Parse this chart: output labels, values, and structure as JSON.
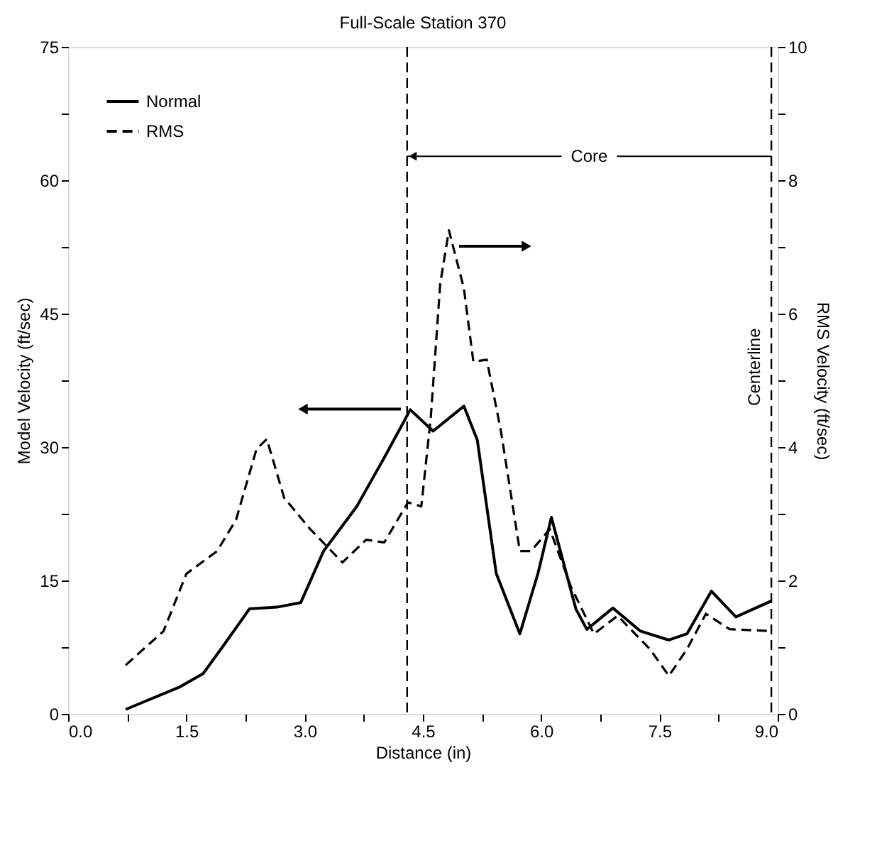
{
  "chart_data": {
    "type": "line",
    "title": "Full-Scale Station 370",
    "xlabel": "Distance (in)",
    "ylabel": "Model Velocity (ft/sec)",
    "y2label": "RMS Velocity (ft/sec)",
    "series": [
      {
        "name": "Normal",
        "color": "#000000",
        "line_style": "solid",
        "x": [
          0.73,
          1.41,
          1.71,
          1.94,
          2.3,
          2.65,
          2.95,
          3.24,
          3.66,
          4.01,
          4.34,
          4.63,
          5.02,
          5.19,
          5.43,
          5.73,
          5.96,
          6.13,
          6.44,
          6.58,
          6.91,
          7.26,
          7.62,
          7.85,
          8.16,
          8.47,
          8.92
        ],
        "values": [
          0.5,
          3.0,
          4.5,
          7.3,
          11.8,
          12.0,
          12.5,
          18.3,
          23.3,
          28.8,
          34.2,
          31.8,
          34.6,
          30.8,
          15.8,
          9.0,
          15.8,
          22.1,
          11.8,
          9.5,
          11.9,
          9.3,
          8.3,
          9.0,
          13.8,
          10.9,
          12.7
        ]
      },
      {
        "name": "RMS",
        "color": "#000000",
        "line_style": "dashed",
        "axis": "y2",
        "x": [
          0.73,
          1.21,
          1.5,
          1.89,
          2.13,
          2.39,
          2.52,
          2.74,
          3.07,
          3.48,
          3.78,
          4.01,
          4.31,
          4.48,
          4.6,
          4.72,
          4.83,
          5.02,
          5.14,
          5.31,
          5.49,
          5.73,
          5.87,
          6.11,
          6.38,
          6.67,
          6.97,
          7.38,
          7.62,
          7.85,
          8.09,
          8.39,
          8.92
        ],
        "values": [
          0.73,
          1.24,
          2.1,
          2.44,
          2.91,
          3.97,
          4.12,
          3.24,
          2.77,
          2.27,
          2.61,
          2.57,
          3.17,
          3.11,
          4.44,
          6.45,
          7.25,
          6.38,
          5.28,
          5.31,
          4.24,
          2.44,
          2.44,
          2.77,
          1.9,
          1.2,
          1.47,
          0.97,
          0.57,
          0.97,
          1.5,
          1.27,
          1.24
        ]
      }
    ],
    "xlim": [
      0,
      9
    ],
    "xticks": [
      {
        "value": 0,
        "label": "0.0"
      },
      {
        "value": 0.75,
        "label": null
      },
      1.5,
      {
        "value": 2.25,
        "label": null
      },
      {
        "value": 3,
        "label": "3.0"
      },
      {
        "value": 3.75,
        "label": null
      },
      4.5,
      {
        "value": 5.25,
        "label": null
      },
      {
        "value": 6,
        "label": "6.0"
      },
      {
        "value": 6.75,
        "label": null
      },
      7.5,
      {
        "value": 8.25,
        "label": null
      },
      {
        "value": 9,
        "label": "9.0"
      }
    ],
    "ylim": [
      0,
      75
    ],
    "yticks": [
      0,
      {
        "value": 7.5,
        "label": null
      },
      15,
      {
        "value": 22.5,
        "label": null
      },
      30,
      {
        "value": 37.5,
        "label": null
      },
      45,
      {
        "value": 52.5,
        "label": null
      },
      60,
      {
        "value": 67.5,
        "label": null
      },
      75
    ],
    "y2lim": [
      0,
      10
    ],
    "y2ticks": [
      0,
      {
        "value": 1,
        "label": null
      },
      2,
      {
        "value": 3,
        "label": null
      },
      4,
      {
        "value": 5,
        "label": null
      },
      6,
      {
        "value": 7,
        "label": null
      },
      8,
      {
        "value": 9,
        "label": null
      },
      10
    ],
    "ref_lines": [
      {
        "axis": "x",
        "value": 4.3,
        "line_style": "dashed"
      },
      {
        "axis": "x",
        "value": 8.92,
        "line_style": "dashed",
        "label": "Centerline"
      }
    ],
    "annotations": [
      {
        "text": "Core",
        "x": 4.3,
        "y": 62.7
      }
    ],
    "legend": "top left",
    "grid": false,
    "marker": "none"
  }
}
